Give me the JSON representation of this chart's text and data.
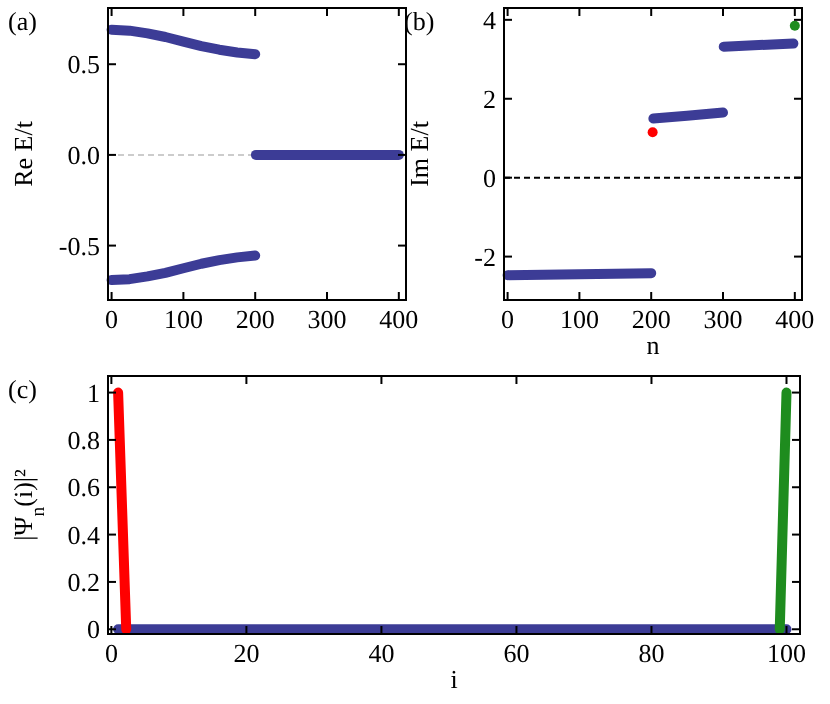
{
  "chart_data": [
    {
      "type": "line",
      "title": "(a)",
      "ylabel": "Re E/t",
      "xlim": [
        -5,
        410
      ],
      "ylim": [
        -0.8,
        0.81
      ],
      "xticks": [
        0,
        100,
        200,
        300,
        400
      ],
      "yticks": [
        -0.5,
        {
          "value": 0,
          "label": "0.0"
        },
        0.5
      ],
      "ref_lines": [
        {
          "axis": "y",
          "value": 0,
          "color": "#cccccc",
          "line_style": "dashed"
        }
      ],
      "series": [
        {
          "color": "#3c3c96",
          "x": [
            0,
            25,
            50,
            75,
            100,
            125,
            150,
            175,
            200
          ],
          "values": [
            0.69,
            0.685,
            0.67,
            0.65,
            0.625,
            0.6,
            0.58,
            0.565,
            0.555
          ]
        },
        {
          "color": "#3c3c96",
          "x": [
            0,
            25,
            50,
            75,
            100,
            125,
            150,
            175,
            200
          ],
          "values": [
            -0.69,
            -0.685,
            -0.67,
            -0.65,
            -0.625,
            -0.6,
            -0.58,
            -0.565,
            -0.555
          ]
        },
        {
          "color": "#3c3c96",
          "x": [
            201,
            400
          ],
          "values": [
            0,
            0
          ]
        }
      ]
    },
    {
      "type": "line",
      "title": "(b)",
      "xlabel": "n",
      "ylabel": "Im E/t",
      "xlim": [
        -5,
        410
      ],
      "ylim": [
        -3.1,
        4.3
      ],
      "xticks": [
        0,
        100,
        200,
        300,
        400
      ],
      "yticks": [
        -2,
        0,
        2,
        4
      ],
      "ref_lines": [
        {
          "axis": "y",
          "value": 0,
          "color": "#000000",
          "line_style": "dashed"
        }
      ],
      "series": [
        {
          "color": "#3c3c96",
          "x": [
            0,
            100,
            200
          ],
          "values": [
            -2.47,
            -2.45,
            -2.42
          ]
        },
        {
          "color": "#3c3c96",
          "x": [
            203,
            250,
            300
          ],
          "values": [
            1.5,
            1.57,
            1.65
          ]
        },
        {
          "color": "#3c3c96",
          "x": [
            301,
            350,
            398
          ],
          "values": [
            3.32,
            3.36,
            3.4
          ]
        },
        {
          "type": "scatter",
          "color": "#ff0000",
          "x": [
            202
          ],
          "values": [
            1.15
          ]
        },
        {
          "type": "scatter",
          "color": "#1e8c1e",
          "x": [
            400
          ],
          "values": [
            3.85
          ]
        }
      ]
    },
    {
      "type": "line",
      "title": "(c)",
      "xlabel": "i",
      "ylabel": "|Ψ$_{n}$(i)|²",
      "xlim": [
        -0.5,
        102
      ],
      "ylim": [
        -0.02,
        1.07
      ],
      "xticks": [
        0,
        20,
        40,
        60,
        80,
        100
      ],
      "yticks": [
        0,
        0.2,
        0.4,
        0.6,
        0.8,
        1
      ],
      "series": [
        {
          "color": "#3c3c96",
          "x": [
            1,
            100
          ],
          "values": [
            0,
            0
          ]
        },
        {
          "color": "#ff0000",
          "x": [
            1,
            2.2
          ],
          "values": [
            1,
            0
          ]
        },
        {
          "color": "#1e8c1e",
          "x": [
            99,
            100
          ],
          "values": [
            0,
            1
          ]
        }
      ]
    }
  ]
}
